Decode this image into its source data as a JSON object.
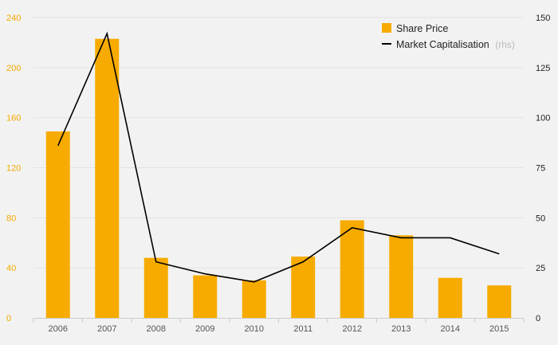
{
  "chart_data": {
    "type": "bar",
    "title": "",
    "xlabel": "",
    "ylabel": "",
    "categories": [
      "2006",
      "2007",
      "2008",
      "2009",
      "2010",
      "2011",
      "2012",
      "2013",
      "2014",
      "2015"
    ],
    "series": [
      {
        "name": "Share Price",
        "type": "bar",
        "axis": "left",
        "color": "#f7ab00",
        "values": [
          149,
          223,
          48,
          34,
          30,
          49,
          78,
          66,
          32,
          26
        ]
      },
      {
        "name": "Market Capitalisation",
        "type": "line",
        "axis": "right",
        "color": "#000000",
        "values": [
          86,
          142,
          28,
          22,
          18,
          28,
          45,
          40,
          40,
          32
        ]
      }
    ],
    "ylim_left": [
      0,
      240
    ],
    "yticks_left": [
      "0",
      "40",
      "80",
      "120",
      "160",
      "200",
      "240"
    ],
    "ylim_right": [
      0,
      150
    ],
    "yticks_right": [
      "0",
      "25",
      "50",
      "75",
      "100",
      "125",
      "150"
    ],
    "grid": true,
    "legend": {
      "position": "top-right",
      "items": [
        {
          "label": "Share Price",
          "note": ""
        },
        {
          "label": "Market Capitalisation",
          "note": "(rhs)"
        }
      ]
    }
  }
}
